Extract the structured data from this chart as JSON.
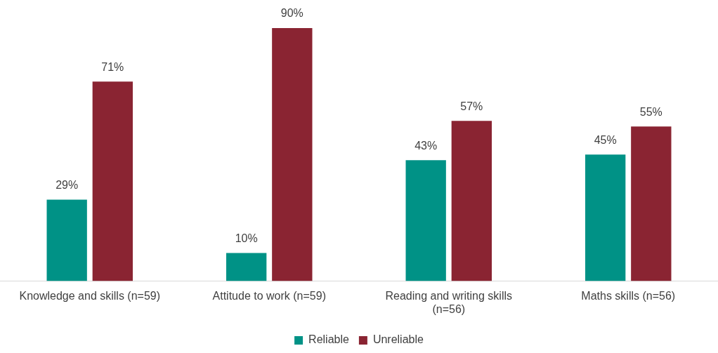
{
  "chart_data": {
    "type": "bar",
    "categories": [
      "Knowledge and skills (n=59)",
      "Attitude to work (n=59)",
      "Reading and writing skills (n=56)",
      "Maths skills (n=56)"
    ],
    "series": [
      {
        "name": "Reliable",
        "color": "#009286",
        "values": [
          29,
          10,
          43,
          45
        ],
        "value_labels": [
          "29%",
          "10%",
          "43%",
          "45%"
        ]
      },
      {
        "name": "Unreliable",
        "color": "#8a2432",
        "values": [
          71,
          90,
          57,
          55
        ],
        "value_labels": [
          "71%",
          "90%",
          "57%",
          "55%"
        ]
      }
    ],
    "legend": "bottom",
    "grid": false
  }
}
